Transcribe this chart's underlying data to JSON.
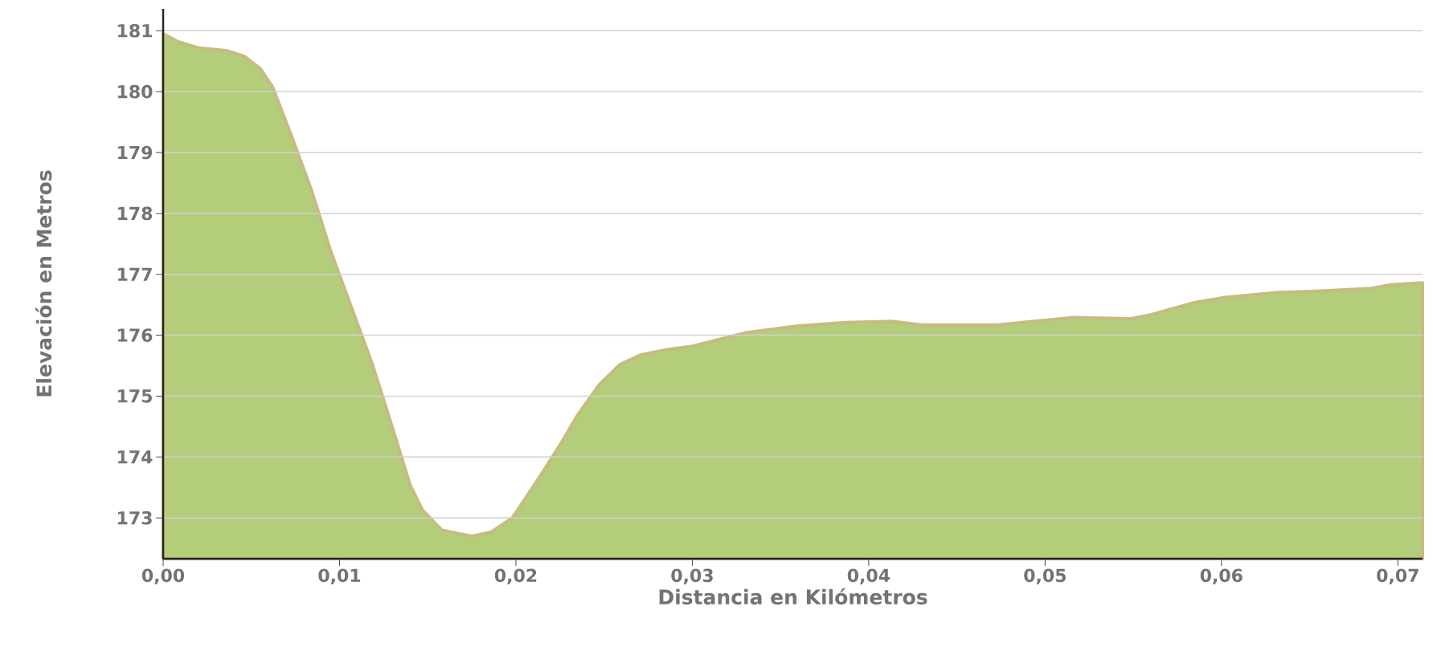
{
  "chart_data": {
    "type": "area",
    "xlabel": "Distancia en Kilómetros",
    "ylabel": "Elevación en Metros",
    "x": [
      0,
      0.00084,
      0.002,
      0.00365,
      0.0046,
      0.0055,
      0.0062,
      0.0072,
      0.0084,
      0.0095,
      0.0107,
      0.0119,
      0.013,
      0.014,
      0.0147,
      0.0158,
      0.0175,
      0.0186,
      0.0198,
      0.0212,
      0.0224,
      0.0235,
      0.0247,
      0.0259,
      0.0271,
      0.0285,
      0.03,
      0.033,
      0.0359,
      0.0387,
      0.0413,
      0.043,
      0.0473,
      0.0501,
      0.0516,
      0.0548,
      0.0559,
      0.0585,
      0.0602,
      0.0631,
      0.0659,
      0.0685,
      0.0696,
      0.0714
    ],
    "series": [
      {
        "color": "#b3cd7a",
        "values": [
          180.95,
          180.82,
          180.72,
          180.67,
          180.58,
          180.38,
          180.08,
          179.33,
          178.39,
          177.38,
          176.44,
          175.49,
          174.48,
          173.54,
          173.13,
          172.8,
          172.7,
          172.77,
          173.0,
          173.61,
          174.15,
          174.69,
          175.18,
          175.52,
          175.68,
          175.76,
          175.82,
          176.04,
          176.15,
          176.21,
          176.23,
          176.17,
          176.17,
          176.25,
          176.29,
          176.27,
          176.33,
          176.54,
          176.62,
          176.7,
          176.73,
          176.77,
          176.83,
          176.86
        ]
      }
    ],
    "xlim": [
      0,
      0.0714
    ],
    "ylim": [
      172.33,
      181.36
    ],
    "xticks": [
      {
        "value": 0,
        "label": "0,00"
      },
      {
        "value": 0.01,
        "label": "0,01"
      },
      {
        "value": 0.02,
        "label": "0,02"
      },
      {
        "value": 0.03,
        "label": "0,03"
      },
      {
        "value": 0.04,
        "label": "0,04"
      },
      {
        "value": 0.05,
        "label": "0,05"
      },
      {
        "value": 0.06,
        "label": "0,06"
      },
      {
        "value": 0.07,
        "label": "0,07"
      }
    ],
    "yticks": [
      173,
      174,
      175,
      176,
      177,
      178,
      179,
      180,
      181
    ],
    "grid": "y",
    "marker": "none"
  }
}
